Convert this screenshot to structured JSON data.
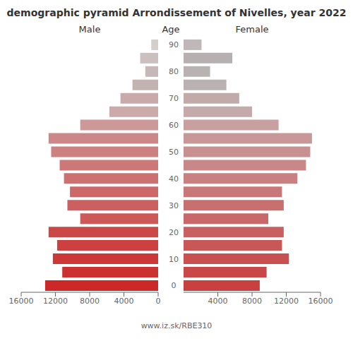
{
  "chart_data": {
    "type": "bar",
    "orientation": "horizontal",
    "title": "demographic pyramid Arrondissement of Nivelles, year 2022",
    "ylabel": "Age",
    "annotations": [
      "www.iz.sk/RBE310"
    ],
    "categories": [
      "90",
      null,
      "80",
      null,
      "70",
      null,
      "60",
      null,
      "50",
      null,
      "40",
      null,
      "30",
      null,
      "20",
      null,
      "10",
      null,
      "0"
    ],
    "series": [
      {
        "name": "Male",
        "values": [
          800,
          2100,
          1500,
          3000,
          4400,
          5700,
          9100,
          12800,
          12500,
          11500,
          11000,
          10300,
          10600,
          9100,
          12800,
          11800,
          12300,
          11200,
          13200
        ],
        "colors": [
          "#d5cccc",
          "#cbbfbf",
          "#c6b8b8",
          "#c2b2b2",
          "#c8aaaa",
          "#ccaaaa",
          "#cc9898",
          "#cc8888",
          "#cc8080",
          "#cc7878",
          "#cc7070",
          "#cc6868",
          "#cc6060",
          "#cc5858",
          "#cc4848",
          "#cc4040",
          "#cc3838",
          "#cc3030",
          "#cc2828"
        ]
      },
      {
        "name": "Female",
        "values": [
          2100,
          5700,
          3100,
          5000,
          6500,
          8000,
          11100,
          15000,
          14800,
          14300,
          13300,
          11500,
          11700,
          9900,
          11700,
          11500,
          12300,
          9700,
          8900
        ],
        "colors": [
          "#c0b8b8",
          "#b6b0b0",
          "#b8b2b2",
          "#b8b2b2",
          "#c0aaaa",
          "#c4aaaa",
          "#c8a0a0",
          "#c89898",
          "#c89090",
          "#c88888",
          "#c88080",
          "#c87878",
          "#c87070",
          "#c86868",
          "#c86060",
          "#c85858",
          "#c85050",
          "#c84848",
          "#c84040"
        ]
      }
    ],
    "xlim": [
      0,
      16000
    ],
    "xticks": [
      0,
      4000,
      8000,
      12000,
      16000
    ],
    "grid": false
  }
}
